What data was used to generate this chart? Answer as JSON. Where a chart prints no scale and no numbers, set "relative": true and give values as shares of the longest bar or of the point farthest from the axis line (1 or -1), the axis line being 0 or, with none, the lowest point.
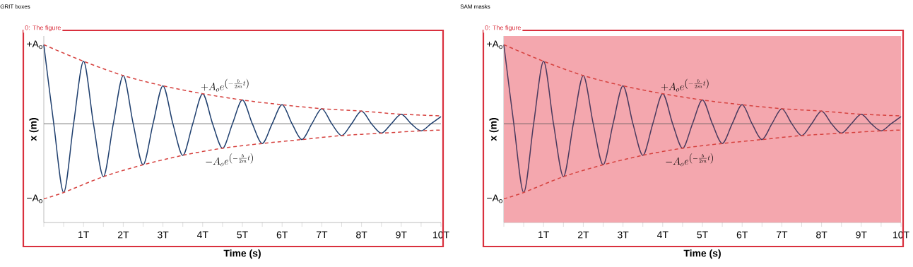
{
  "chart_data": [
    {
      "type": "line",
      "title": "GRIT boxes",
      "xlabel": "Time (s)",
      "ylabel": "x (m)",
      "relative": true,
      "xlim": [
        0,
        10
      ],
      "xticks": [
        {
          "value": 0,
          "label": null
        },
        {
          "value": 1,
          "label": "1T"
        },
        {
          "value": 2,
          "label": "2T"
        },
        {
          "value": 3,
          "label": "3T"
        },
        {
          "value": 4,
          "label": "4T"
        },
        {
          "value": 5,
          "label": "5T"
        },
        {
          "value": 6,
          "label": "6T"
        },
        {
          "value": 7,
          "label": "7T"
        },
        {
          "value": 8,
          "label": "8T"
        },
        {
          "value": 9,
          "label": "9T"
        },
        {
          "value": 10,
          "label": "10T"
        }
      ],
      "ref_lines": [
        {
          "axis": "y",
          "value": 0,
          "color": "#555555"
        }
      ],
      "series": [
        {
          "color": "#1f3f6e",
          "line_style": "solid",
          "x": [
            0,
            0.25,
            0.5,
            0.75,
            1,
            1.25,
            1.5,
            1.75,
            2,
            2.25,
            2.5,
            2.75,
            3,
            3.25,
            3.5,
            3.75,
            4,
            4.25,
            4.5,
            4.75,
            5,
            5.25,
            5.5,
            5.75,
            6,
            6.25,
            6.5,
            6.75,
            7,
            7.25,
            7.5,
            7.75,
            8,
            8.25,
            8.5,
            8.75,
            9,
            9.25,
            9.5,
            9.75,
            10
          ],
          "values": [
            1,
            0,
            -0.87,
            0,
            0.79,
            0,
            -0.67,
            0,
            0.61,
            0,
            -0.52,
            0,
            0.48,
            0,
            -0.4,
            0,
            0.38,
            0,
            -0.31,
            0,
            0.3,
            0,
            -0.25,
            0,
            0.24,
            0,
            -0.2,
            0,
            0.19,
            0,
            -0.15,
            0,
            0.16,
            0,
            -0.12,
            0,
            0.12,
            0,
            -0.09,
            0,
            0.09
          ]
        },
        {
          "color": "#d6423f",
          "line_style": "dashed",
          "x": [
            0,
            1,
            2,
            3,
            4,
            5,
            6,
            7,
            8,
            9,
            10
          ],
          "values": [
            1,
            0.79,
            0.61,
            0.48,
            0.38,
            0.3,
            0.24,
            0.19,
            0.16,
            0.12,
            0.1
          ]
        },
        {
          "color": "#d6423f",
          "line_style": "dashed",
          "x": [
            0,
            0.5,
            1.5,
            2.5,
            3.5,
            4.5,
            5.5,
            6.5,
            7.5,
            8.5,
            9.5,
            10
          ],
          "values": [
            -0.95,
            -0.87,
            -0.67,
            -0.52,
            -0.4,
            -0.31,
            -0.25,
            -0.2,
            -0.15,
            -0.12,
            -0.09,
            -0.08
          ]
        }
      ],
      "annotations": [
        "0: The figure",
        {
          "text": "+A$_{o}$",
          "x": 0,
          "y": 1
        },
        {
          "text": "−A$_{o}$",
          "x": 0,
          "y": -0.95
        },
        {
          "text": "+A_o e^{\\left(-\\frac{b}{2m}t\\right)}",
          "x": 4,
          "y": 0.38
        },
        {
          "text": "-A_o e^{\\left(-\\frac{b}{2m}t\\right)}",
          "x": 4.5,
          "y": -0.31
        }
      ]
    },
    {
      "type": "line",
      "title": "SAM masks",
      "xlabel": "Time (s)",
      "ylabel": "x (m)",
      "relative": true,
      "xlim": [
        0,
        10
      ],
      "xticks": [
        {
          "value": 0,
          "label": null
        },
        {
          "value": 1,
          "label": "1T"
        },
        {
          "value": 2,
          "label": "2T"
        },
        {
          "value": 3,
          "label": "3T"
        },
        {
          "value": 4,
          "label": "4T"
        },
        {
          "value": 5,
          "label": "5T"
        },
        {
          "value": 6,
          "label": "6T"
        },
        {
          "value": 7,
          "label": "7T"
        },
        {
          "value": 8,
          "label": "8T"
        },
        {
          "value": 9,
          "label": "9T"
        },
        {
          "value": 10,
          "label": "10T"
        }
      ],
      "ref_lines": [
        {
          "axis": "y",
          "value": 0,
          "color": "#555555"
        }
      ],
      "bands": [
        {
          "axis": "x",
          "from": 0,
          "to": 10,
          "color": "#f4a7ae"
        }
      ],
      "series": [
        {
          "color": "#4a3a5e",
          "line_style": "solid",
          "x": [
            0,
            0.25,
            0.5,
            0.75,
            1,
            1.25,
            1.5,
            1.75,
            2,
            2.25,
            2.5,
            2.75,
            3,
            3.25,
            3.5,
            3.75,
            4,
            4.25,
            4.5,
            4.75,
            5,
            5.25,
            5.5,
            5.75,
            6,
            6.25,
            6.5,
            6.75,
            7,
            7.25,
            7.5,
            7.75,
            8,
            8.25,
            8.5,
            8.75,
            9,
            9.25,
            9.5,
            9.75,
            10
          ],
          "values": [
            1,
            0,
            -0.87,
            0,
            0.79,
            0,
            -0.67,
            0,
            0.61,
            0,
            -0.52,
            0,
            0.48,
            0,
            -0.4,
            0,
            0.38,
            0,
            -0.31,
            0,
            0.3,
            0,
            -0.25,
            0,
            0.24,
            0,
            -0.2,
            0,
            0.19,
            0,
            -0.15,
            0,
            0.16,
            0,
            -0.12,
            0,
            0.12,
            0,
            -0.09,
            0,
            0.09
          ]
        },
        {
          "color": "#d6423f",
          "line_style": "dashed",
          "x": [
            0,
            1,
            2,
            3,
            4,
            5,
            6,
            7,
            8,
            9,
            10
          ],
          "values": [
            1,
            0.79,
            0.61,
            0.48,
            0.38,
            0.3,
            0.24,
            0.19,
            0.16,
            0.12,
            0.1
          ]
        },
        {
          "color": "#d6423f",
          "line_style": "dashed",
          "x": [
            0,
            0.5,
            1.5,
            2.5,
            3.5,
            4.5,
            5.5,
            6.5,
            7.5,
            8.5,
            9.5,
            10
          ],
          "values": [
            -0.95,
            -0.87,
            -0.67,
            -0.52,
            -0.4,
            -0.31,
            -0.25,
            -0.2,
            -0.15,
            -0.12,
            -0.09,
            -0.08
          ]
        }
      ],
      "annotations": [
        "0: The figure",
        {
          "text": "+A$_{o}$",
          "x": 0,
          "y": 1
        },
        {
          "text": "−A$_{o}$",
          "x": 0,
          "y": -0.95
        },
        {
          "text": "+A_o e^{\\left(-\\frac{b}{2m}t\\right)}",
          "x": 4,
          "y": 0.38
        },
        {
          "text": "-A_o e^{\\left(-\\frac{b}{2m}t\\right)}",
          "x": 4.5,
          "y": -0.31
        }
      ]
    }
  ]
}
